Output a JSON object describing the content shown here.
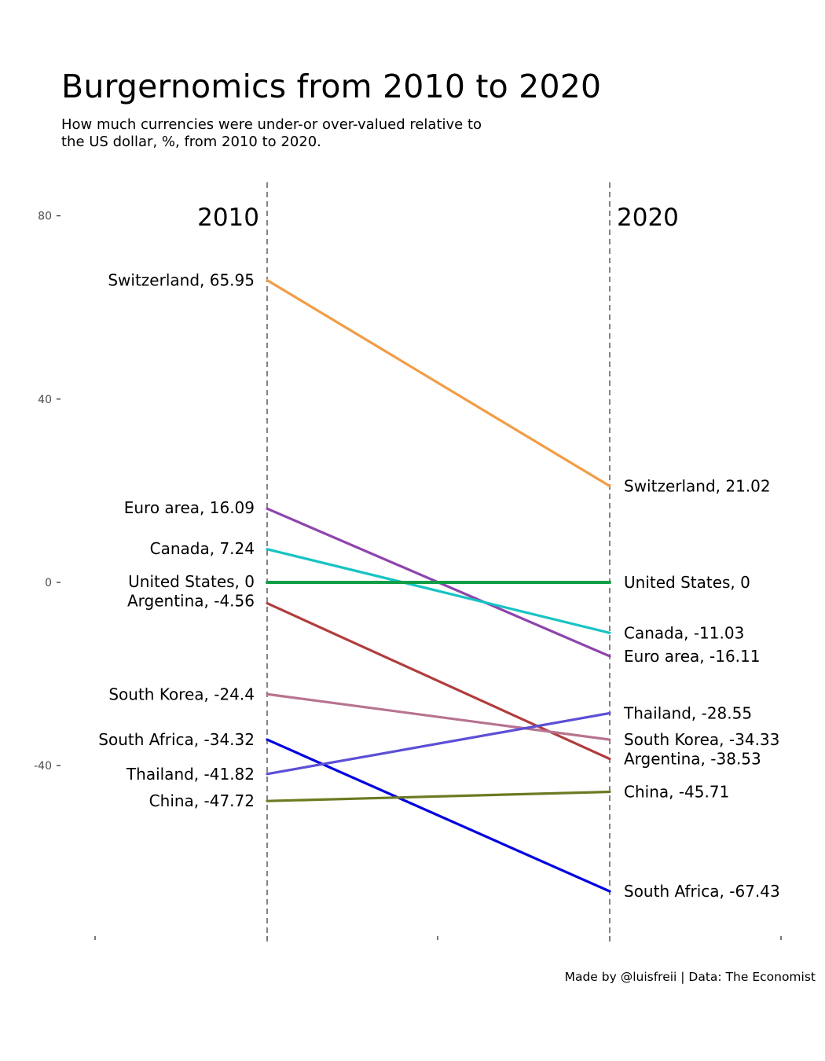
{
  "title": "Burgernomics from 2010 to 2020",
  "subtitle": "How much currencies were under-or over-valued relative to the US dollar, %, from 2010 to 2020.",
  "caption": "Made by @luisfreii | Data: The Economist",
  "chart_data": {
    "type": "line",
    "x": [
      "2010",
      "2020"
    ],
    "ylim": [
      -80,
      80
    ],
    "yticks": [
      80,
      40,
      0,
      -40
    ],
    "ytick_labels": [
      "80",
      "40",
      "0",
      "-40"
    ],
    "grid": false,
    "series": [
      {
        "name": "Switzerland",
        "values": [
          65.95,
          21.02
        ],
        "color": "#F29C45",
        "label_2010": "Switzerland, 65.95",
        "label_2020": "Switzerland, 21.02"
      },
      {
        "name": "Euro area",
        "values": [
          16.09,
          -16.11
        ],
        "color": "#8E44AD",
        "label_2010": "Euro area, 16.09",
        "label_2020": "Euro area, -16.11"
      },
      {
        "name": "Canada",
        "values": [
          7.24,
          -11.03
        ],
        "color": "#17C3C3",
        "label_2010": "Canada, 7.24",
        "label_2020": "Canada, -11.03"
      },
      {
        "name": "United States",
        "values": [
          0,
          0
        ],
        "color": "#0E9E48",
        "label_2010": "United States, 0",
        "label_2020": "United States, 0"
      },
      {
        "name": "Argentina",
        "values": [
          -4.56,
          -38.53
        ],
        "color": "#B13D3D",
        "label_2010": "Argentina, -4.56",
        "label_2020": "Argentina, -38.53"
      },
      {
        "name": "South Korea",
        "values": [
          -24.4,
          -34.33
        ],
        "color": "#B7738F",
        "label_2010": "South Korea, -24.4",
        "label_2020": "South Korea, -34.33"
      },
      {
        "name": "South Africa",
        "values": [
          -34.32,
          -67.43
        ],
        "color": "#0000E0",
        "label_2010": "South Africa, -34.32",
        "label_2020": "South Africa, -67.43"
      },
      {
        "name": "Thailand",
        "values": [
          -41.82,
          -28.55
        ],
        "color": "#5B4FD6",
        "label_2010": "Thailand, -41.82",
        "label_2020": "Thailand, -28.55"
      },
      {
        "name": "China",
        "values": [
          -47.72,
          -45.71
        ],
        "color": "#6B7B22",
        "label_2010": "China, -47.72",
        "label_2020": "China, -45.71"
      }
    ]
  }
}
